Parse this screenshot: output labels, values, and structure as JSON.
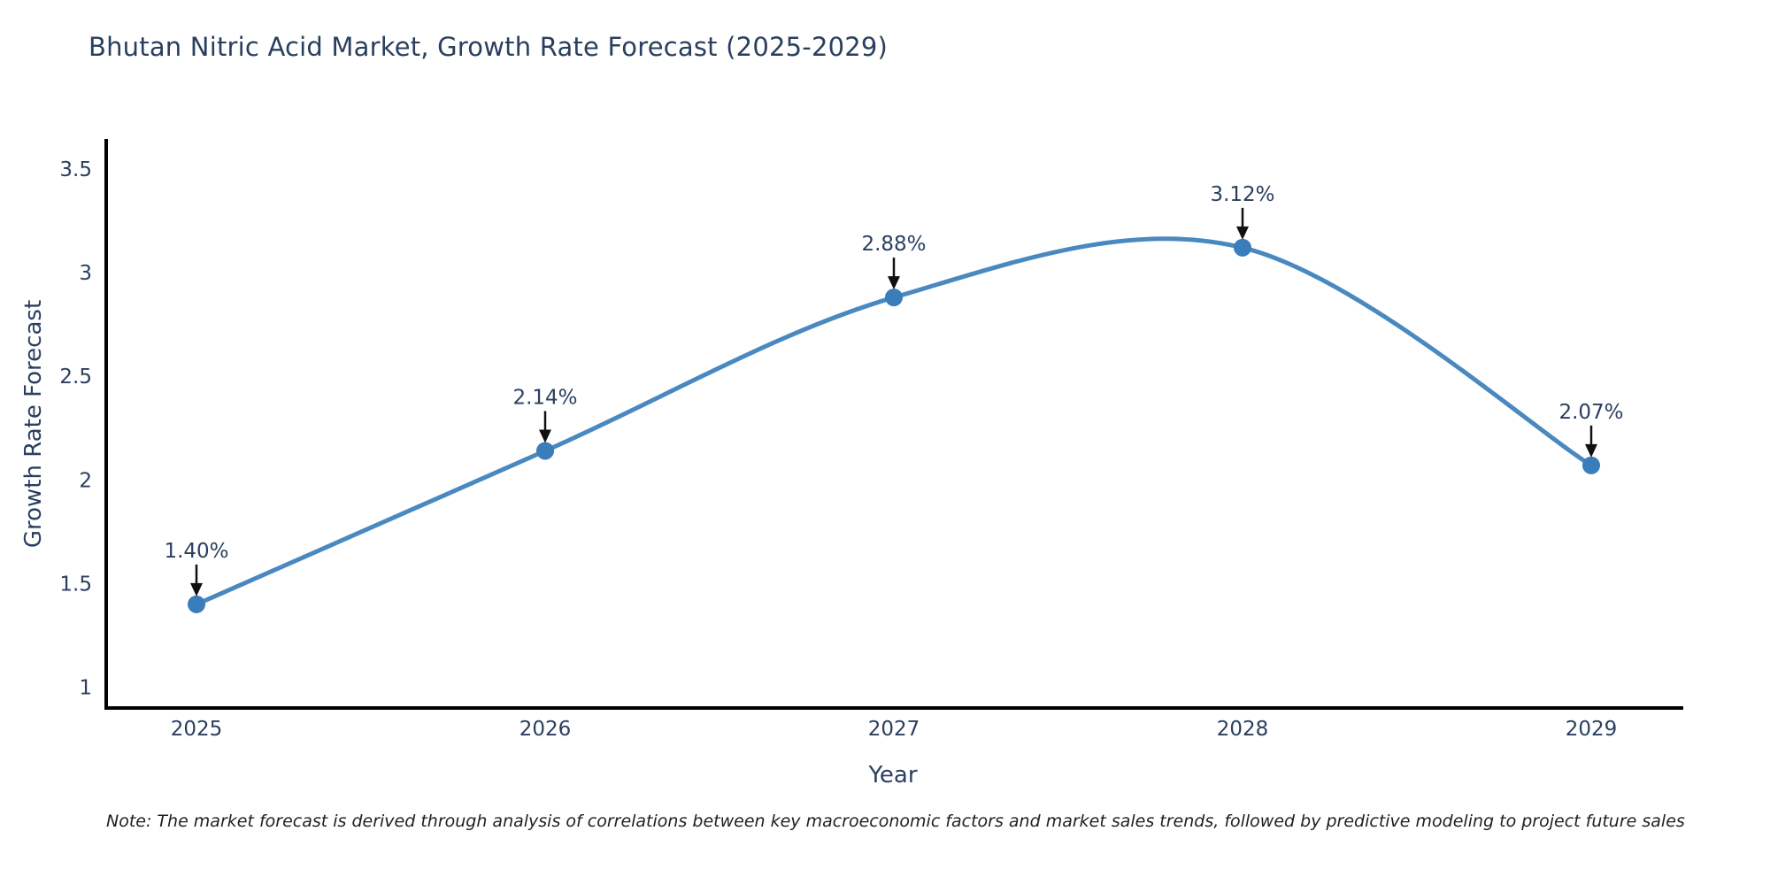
{
  "chart_data": {
    "type": "line",
    "title": "Bhutan Nitric Acid Market, Growth Rate Forecast (2025-2029)",
    "xlabel": "Year",
    "ylabel": "Growth Rate Forecast",
    "categories": [
      "2025",
      "2026",
      "2027",
      "2028",
      "2029"
    ],
    "series": [
      {
        "name": "Growth Rate Forecast",
        "values": [
          1.4,
          2.14,
          2.88,
          3.12,
          2.07
        ]
      }
    ],
    "point_labels": [
      "1.40%",
      "2.14%",
      "2.88%",
      "3.12%",
      "2.07%"
    ],
    "yticks": [
      1,
      1.5,
      2,
      2.5,
      3,
      3.5
    ],
    "ylim": [
      0.9,
      3.64
    ],
    "line_shape": "spline",
    "grid": false,
    "legend_position": "none",
    "colors": {
      "line": "#4a89c0",
      "marker": "#3b7cba",
      "axis": "#000000",
      "tick_label": "#2a3f5f",
      "title": "#2a3f5f",
      "annotation_text": "#2a3f5f",
      "arrow": "#101010",
      "background": "#ffffff"
    }
  },
  "note": {
    "text": "Note: The market forecast is derived through analysis of correlations between key macroeconomic factors and market sales trends, followed by predictive modeling to project future sales"
  }
}
